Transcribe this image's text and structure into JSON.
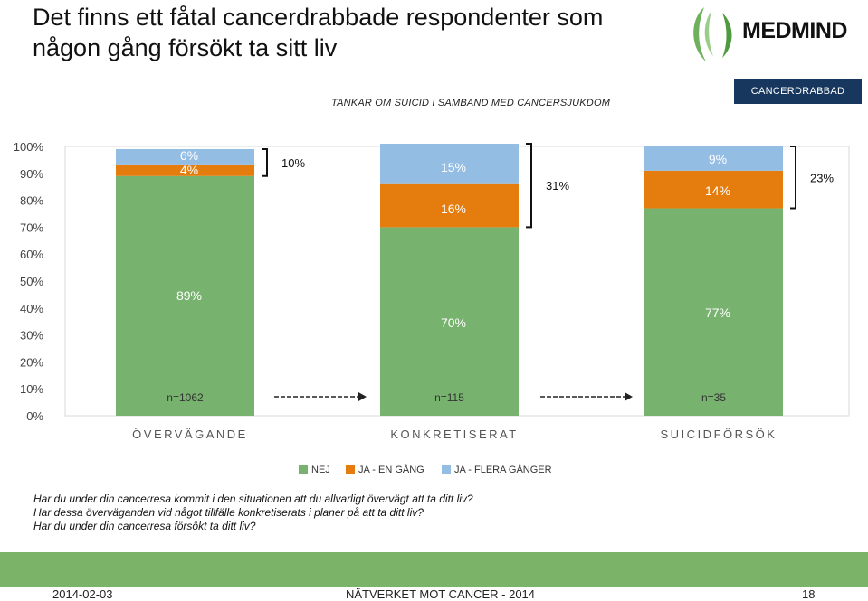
{
  "header": {
    "title_line1": "Det finns ett fåtal cancerdrabbade respondenter som",
    "title_line2": "någon gång försökt ta sitt liv",
    "logo_text": "MEDMIND",
    "subtitle": "TANKAR OM SUICID I SAMBAND MED CANCERSJUKDOM",
    "badge": "CANCERDRABBAD"
  },
  "chart_data": {
    "type": "bar",
    "stacked": true,
    "categories": [
      "ÖVERVÄGANDE",
      "KONKRETISERAT",
      "SUICIDFÖRSÖK"
    ],
    "sample_sizes": [
      "n=1062",
      "n=115",
      "n=35"
    ],
    "series": [
      {
        "name": "NEJ",
        "color": "#77b36e",
        "values": [
          89,
          70,
          77
        ],
        "labels": [
          "89%",
          "70%",
          "77%"
        ]
      },
      {
        "name": "JA - EN GÅNG",
        "color": "#e47d0e",
        "values": [
          4,
          16,
          14
        ],
        "labels": [
          "4%",
          "16%",
          "14%"
        ]
      },
      {
        "name": "JA - FLERA GÅNGER",
        "color": "#94bde4",
        "values": [
          6,
          15,
          9
        ],
        "labels": [
          "6%",
          "15%",
          "9%"
        ]
      }
    ],
    "totals_yes": [
      "10%",
      "31%",
      "23%"
    ],
    "y_ticks": [
      "0%",
      "10%",
      "20%",
      "30%",
      "40%",
      "50%",
      "60%",
      "70%",
      "80%",
      "90%",
      "100%"
    ],
    "ylim": [
      0,
      100
    ],
    "legend_position": "bottom"
  },
  "questions": [
    "Har du under din cancerresa kommit i den situationen att du allvarligt övervägt att ta ditt liv?",
    "Har dessa överväganden vid något tillfälle konkretiserats i planer på att ta ditt liv?",
    "Har du under din cancerresa försökt ta ditt liv?"
  ],
  "footer": {
    "date": "2014-02-03",
    "center": "NÄTVERKET MOT CANCER - 2014",
    "page": "18"
  }
}
